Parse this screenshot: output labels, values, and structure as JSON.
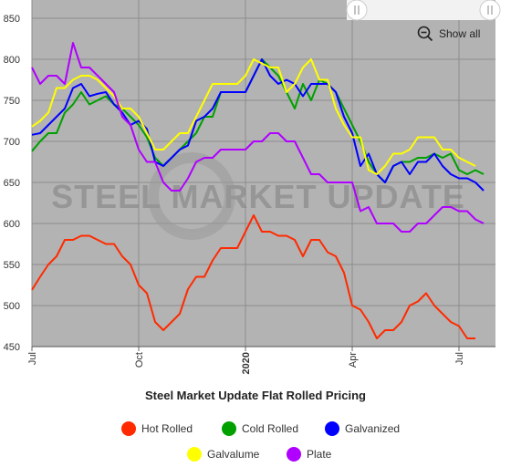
{
  "chart_data": {
    "type": "line",
    "title": "Steel Market Update Flat Rolled Pricing",
    "watermark": "STEEL MARKET UPDATE",
    "show_all_label": "Show all",
    "x_ticks": [
      {
        "label": "Jul",
        "pos": 0,
        "bold": false
      },
      {
        "label": "Oct",
        "pos": 13,
        "bold": false
      },
      {
        "label": "2020",
        "pos": 26,
        "bold": true
      },
      {
        "label": "Apr",
        "pos": 39,
        "bold": false
      },
      {
        "label": "Jul",
        "pos": 52,
        "bold": false
      }
    ],
    "y_ticks": [
      450,
      500,
      550,
      600,
      650,
      700,
      750,
      800,
      850
    ],
    "ylim": [
      450,
      850
    ],
    "grid": true,
    "legend_position": "bottom",
    "series": [
      {
        "name": "Hot Rolled",
        "color": "#ff2a00",
        "values": [
          519,
          535,
          550,
          560,
          580,
          580,
          585,
          585,
          580,
          575,
          575,
          560,
          550,
          525,
          515,
          480,
          470,
          480,
          490,
          520,
          535,
          535,
          555,
          570,
          570,
          570,
          590,
          610,
          590,
          590,
          585,
          585,
          580,
          560,
          580,
          580,
          565,
          560,
          540,
          500,
          495,
          480,
          460,
          470,
          470,
          480,
          500,
          505,
          515,
          500,
          490,
          480,
          475,
          460,
          460
        ]
      },
      {
        "name": "Cold Rolled",
        "color": "#00a000",
        "values": [
          688,
          700,
          710,
          710,
          735,
          745,
          760,
          745,
          750,
          755,
          745,
          740,
          730,
          720,
          705,
          680,
          670,
          680,
          690,
          700,
          710,
          730,
          730,
          760,
          760,
          760,
          760,
          780,
          800,
          790,
          780,
          760,
          740,
          770,
          750,
          775,
          770,
          760,
          740,
          720,
          700,
          675,
          660,
          650,
          670,
          675,
          675,
          680,
          680,
          685,
          680,
          685,
          665,
          660,
          665,
          660
        ]
      },
      {
        "name": "Galvanized",
        "color": "#0000ff",
        "values": [
          708,
          710,
          720,
          730,
          740,
          765,
          770,
          755,
          758,
          760,
          745,
          735,
          720,
          725,
          715,
          675,
          670,
          680,
          690,
          695,
          725,
          730,
          740,
          760,
          760,
          760,
          760,
          780,
          800,
          780,
          770,
          775,
          770,
          755,
          770,
          770,
          770,
          760,
          730,
          710,
          670,
          685,
          660,
          650,
          670,
          675,
          660,
          675,
          675,
          685,
          670,
          660,
          655,
          655,
          650,
          640
        ]
      },
      {
        "name": "Galvalume",
        "color": "#ffff00",
        "values": [
          718,
          725,
          735,
          765,
          765,
          775,
          780,
          780,
          775,
          765,
          755,
          740,
          740,
          730,
          710,
          690,
          690,
          700,
          710,
          710,
          730,
          750,
          770,
          770,
          770,
          770,
          780,
          800,
          795,
          790,
          790,
          760,
          770,
          790,
          800,
          775,
          775,
          740,
          720,
          705,
          705,
          665,
          660,
          670,
          685,
          685,
          690,
          705,
          705,
          705,
          690,
          690,
          680,
          675,
          670
        ]
      },
      {
        "name": "Plate",
        "color": "#b000ff",
        "values": [
          790,
          770,
          780,
          780,
          770,
          820,
          790,
          790,
          780,
          770,
          760,
          730,
          720,
          690,
          675,
          675,
          650,
          640,
          640,
          655,
          675,
          680,
          680,
          690,
          690,
          690,
          690,
          700,
          700,
          710,
          710,
          700,
          700,
          680,
          660,
          660,
          650,
          650,
          650,
          650,
          615,
          620,
          600,
          600,
          600,
          590,
          590,
          600,
          600,
          610,
          620,
          620,
          615,
          615,
          605,
          600
        ]
      }
    ]
  },
  "legend": [
    {
      "label": "Hot Rolled",
      "color": "#ff2a00"
    },
    {
      "label": "Cold Rolled",
      "color": "#00a000"
    },
    {
      "label": "Galvanized",
      "color": "#0000ff"
    },
    {
      "label": "Galvalume",
      "color": "#ffff00"
    },
    {
      "label": "Plate",
      "color": "#b000ff"
    }
  ]
}
